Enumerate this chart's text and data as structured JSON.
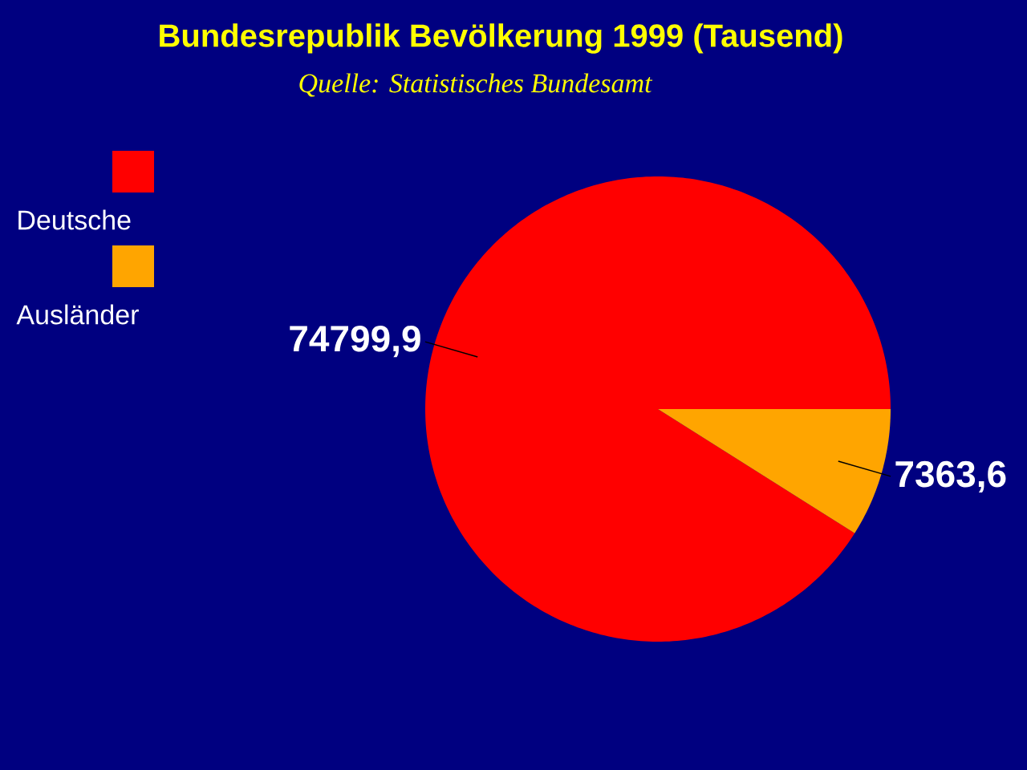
{
  "chart_data": {
    "type": "pie",
    "title": "Bundesrepublik Bevölkerung 1999 (Tausend)",
    "subtitle": "Quelle:  Statistisches Bundesamt",
    "categories": [
      "Deutsche",
      "Ausländer"
    ],
    "values": [
      74799.9,
      7363.6
    ],
    "colors": [
      "#ff0000",
      "#ffa500"
    ],
    "value_labels": [
      "74799,9",
      "7363,6"
    ],
    "legend": "top left"
  }
}
